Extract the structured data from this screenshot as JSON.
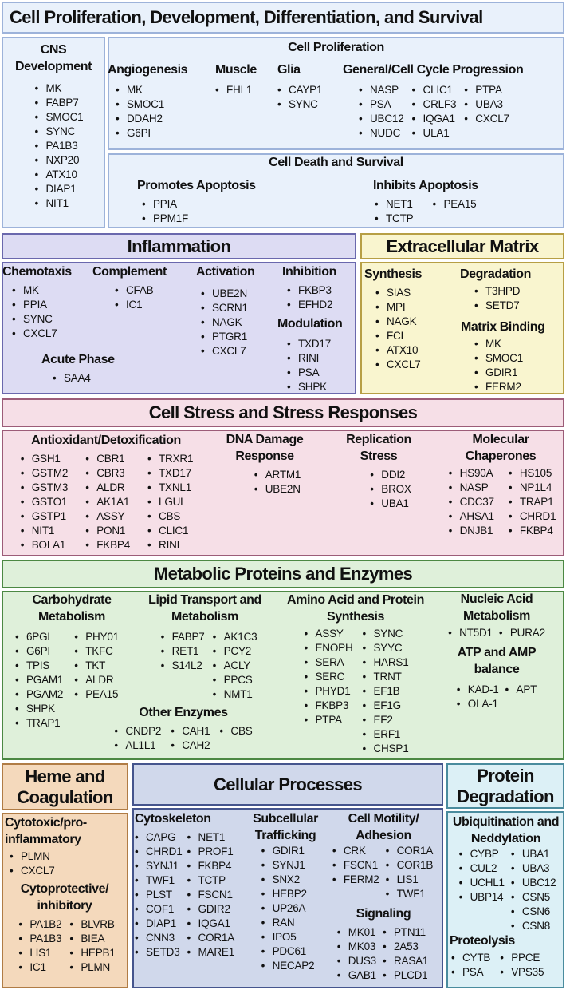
{
  "cell_prolif": {
    "title": "Cell Proliferation, Development, Differentiation, and Survival",
    "cell_proliferation_title": "Cell Proliferation",
    "cell_death_title": "Cell Death and Survival",
    "groups": {
      "cns": {
        "title": "CNS Development",
        "cols": [
          [
            "MK",
            "FABP7",
            "SMOC1",
            "SYNC",
            "PA1B3",
            "NXP20",
            "ATX10",
            "DIAP1",
            "NIT1"
          ]
        ]
      },
      "angiogenesis": {
        "title": "Angiogenesis",
        "cols": [
          [
            "MK",
            "SMOC1",
            "DDAH2",
            "G6PI"
          ]
        ]
      },
      "muscle": {
        "title": "Muscle",
        "cols": [
          [
            "FHL1"
          ]
        ]
      },
      "glia": {
        "title": "Glia",
        "cols": [
          [
            "CAYP1",
            "SYNC"
          ]
        ]
      },
      "general": {
        "title": "General/Cell Cycle Progression",
        "cols": [
          [
            "NASP",
            "PSA",
            "UBC12",
            "NUDC"
          ],
          [
            "CLIC1",
            "CRLF3",
            "IQGA1",
            "ULA1"
          ],
          [
            "PTPA",
            "UBA3",
            "CXCL7"
          ]
        ]
      },
      "promotes": {
        "title": "Promotes Apoptosis",
        "cols": [
          [
            "PPIA",
            "PPM1F"
          ]
        ]
      },
      "inhibits": {
        "title": "Inhibits Apoptosis",
        "cols": [
          [
            "NET1",
            "TCTP"
          ],
          [
            "PEA15"
          ]
        ]
      }
    }
  },
  "inflammation": {
    "title": "Inflammation",
    "groups": {
      "chemotaxis": {
        "title": "Chemotaxis",
        "cols": [
          [
            "MK",
            "PPIA",
            "SYNC",
            "CXCL7"
          ]
        ]
      },
      "complement": {
        "title": "Complement",
        "cols": [
          [
            "CFAB",
            "IC1"
          ]
        ]
      },
      "activation": {
        "title": "Activation",
        "cols": [
          [
            "UBE2N",
            "SCRN1",
            "NAGK",
            "PTGR1",
            "CXCL7"
          ]
        ]
      },
      "inhibition": {
        "title": "Inhibition",
        "cols": [
          [
            "FKBP3",
            "EFHD2"
          ]
        ]
      },
      "modulation": {
        "title": "Modulation",
        "cols": [
          [
            "TXD17",
            "RINI",
            "PSA",
            "SHPK"
          ]
        ]
      },
      "acute": {
        "title": "Acute Phase",
        "cols": [
          [
            "SAA4"
          ]
        ]
      }
    }
  },
  "ecm": {
    "title": "Extracellular Matrix",
    "groups": {
      "synthesis": {
        "title": "Synthesis",
        "cols": [
          [
            "SIAS",
            "MPI",
            "NAGK",
            "FCL",
            "ATX10",
            "CXCL7"
          ]
        ]
      },
      "degradation": {
        "title": "Degradation",
        "cols": [
          [
            "T3HPD",
            "SETD7"
          ]
        ]
      },
      "binding": {
        "title": "Matrix Binding",
        "cols": [
          [
            "MK",
            "SMOC1",
            "GDIR1",
            "FERM2"
          ]
        ]
      }
    }
  },
  "stress": {
    "title": "Cell Stress and Stress Responses",
    "groups": {
      "antiox": {
        "title": "Antioxidant/Detoxification",
        "cols": [
          [
            "GSH1",
            "GSTM2",
            "GSTM3",
            "GSTO1",
            "GSTP1",
            "NIT1",
            "BOLA1"
          ],
          [
            "CBR1",
            "CBR3",
            "ALDR",
            "AK1A1",
            "ASSY",
            "PON1",
            "FKBP4"
          ],
          [
            "TRXR1",
            "TXD17",
            "TXNL1",
            "LGUL",
            "CBS",
            "CLIC1",
            "RINI"
          ]
        ]
      },
      "dna": {
        "title": "DNA Damage Response",
        "cols": [
          [
            "ARTM1",
            "UBE2N"
          ]
        ]
      },
      "replication": {
        "title": "Replication Stress",
        "cols": [
          [
            "DDI2",
            "BROX",
            "UBA1"
          ]
        ]
      },
      "chaperones": {
        "title": "Molecular Chaperones",
        "cols": [
          [
            "HS90A",
            "NASP",
            "CDC37",
            "AHSA1",
            "DNJB1"
          ],
          [
            "HS105",
            "NP1L4",
            "TRAP1",
            "CHRD1",
            "FKBP4"
          ]
        ]
      }
    }
  },
  "metabolic": {
    "title": "Metabolic Proteins and Enzymes",
    "groups": {
      "carb": {
        "title": "Carbohydrate Metabolism",
        "cols": [
          [
            "6PGL",
            "G6PI",
            "TPIS",
            "PGAM1",
            "PGAM2",
            "SHPK",
            "TRAP1"
          ],
          [
            "PHY01",
            "TKFC",
            "TKT",
            "ALDR",
            "PEA15"
          ]
        ]
      },
      "lipid": {
        "title": "Lipid Transport and Metabolism",
        "cols": [
          [
            "FABP7",
            "RET1",
            "S14L2"
          ],
          [
            "AK1C3",
            "PCY2",
            "ACLY",
            "PPCS",
            "NMT1"
          ]
        ]
      },
      "other": {
        "title": "Other Enzymes",
        "cols": [
          [
            "CNDP2",
            "AL1L1"
          ],
          [
            "CAH1",
            "CAH2"
          ],
          [
            "CBS"
          ]
        ]
      },
      "amino": {
        "title": "Amino Acid and Protein Synthesis",
        "cols": [
          [
            "ASSY",
            "ENOPH",
            "SERA",
            "SERC",
            "PHYD1",
            "FKBP3",
            "PTPA"
          ],
          [
            "SYNC",
            "SYYC",
            "HARS1",
            "TRNT",
            "EF1B",
            "EF1G",
            "EF2",
            "ERF1",
            "CHSP1"
          ]
        ]
      },
      "nucleic": {
        "title": "Nucleic Acid Metabolism",
        "cols": [
          [
            "NT5D1"
          ],
          [
            "PURA2"
          ]
        ]
      },
      "atp": {
        "title": "ATP and AMP balance",
        "cols": [
          [
            "KAD-1",
            "OLA-1"
          ],
          [
            "APT"
          ]
        ]
      }
    }
  },
  "heme": {
    "title": "Heme and Coagulation",
    "groups": {
      "cytotoxic": {
        "title": "Cytotoxic/pro-inflammatory",
        "cols": [
          [
            "PLMN",
            "CXCL7"
          ]
        ]
      },
      "cytoprotective": {
        "title": "Cytoprotective/ inhibitory",
        "cols": [
          [
            "PA1B2",
            "PA1B3",
            "LIS1",
            "IC1"
          ],
          [
            "BLVRB",
            "BIEA",
            "HEPB1",
            "PLMN"
          ]
        ]
      }
    }
  },
  "cellular": {
    "title": "Cellular Processes",
    "groups": {
      "cytoskeleton": {
        "title": "Cytoskeleton",
        "cols": [
          [
            "CAPG",
            "CHRD1",
            "SYNJ1",
            "TWF1",
            "PLST",
            "COF1",
            "DIAP1",
            "CNN3",
            "SETD3"
          ],
          [
            "NET1",
            "PROF1",
            "FKBP4",
            "TCTP",
            "FSCN1",
            "GDIR2",
            "IQGA1",
            "COR1A",
            "MARE1"
          ]
        ]
      },
      "trafficking": {
        "title": "Subcellular Trafficking",
        "cols": [
          [
            "GDIR1",
            "SYNJ1",
            "SNX2",
            "HEBP2",
            "UP26A",
            "RAN",
            "IPO5",
            "PDC61",
            "NECAP2"
          ]
        ]
      },
      "motility": {
        "title": "Cell Motility/ Adhesion",
        "cols": [
          [
            "CRK",
            "FSCN1",
            "FERM2"
          ],
          [
            "COR1A",
            "COR1B",
            "LIS1",
            "TWF1"
          ]
        ]
      },
      "signaling": {
        "title": "Signaling",
        "cols": [
          [
            "MK01",
            "MK03",
            "DUS3",
            "GAB1"
          ],
          [
            "PTN11",
            "2A53",
            "RASA1",
            "PLCD1"
          ]
        ]
      }
    }
  },
  "degradation": {
    "title": "Protein Degradation",
    "groups": {
      "ubiq": {
        "title": "Ubiquitination and Neddylation",
        "cols": [
          [
            "CYBP",
            "CUL2",
            "UCHL1",
            "UBP14"
          ],
          [
            "UBA1",
            "UBA3",
            "UBC12",
            "CSN5",
            "CSN6",
            "CSN8"
          ]
        ]
      },
      "proteolysis": {
        "title": "Proteolysis",
        "cols": [
          [
            "CYTB",
            "PSA"
          ],
          [
            "PPCE",
            "VPS35"
          ]
        ]
      }
    }
  }
}
